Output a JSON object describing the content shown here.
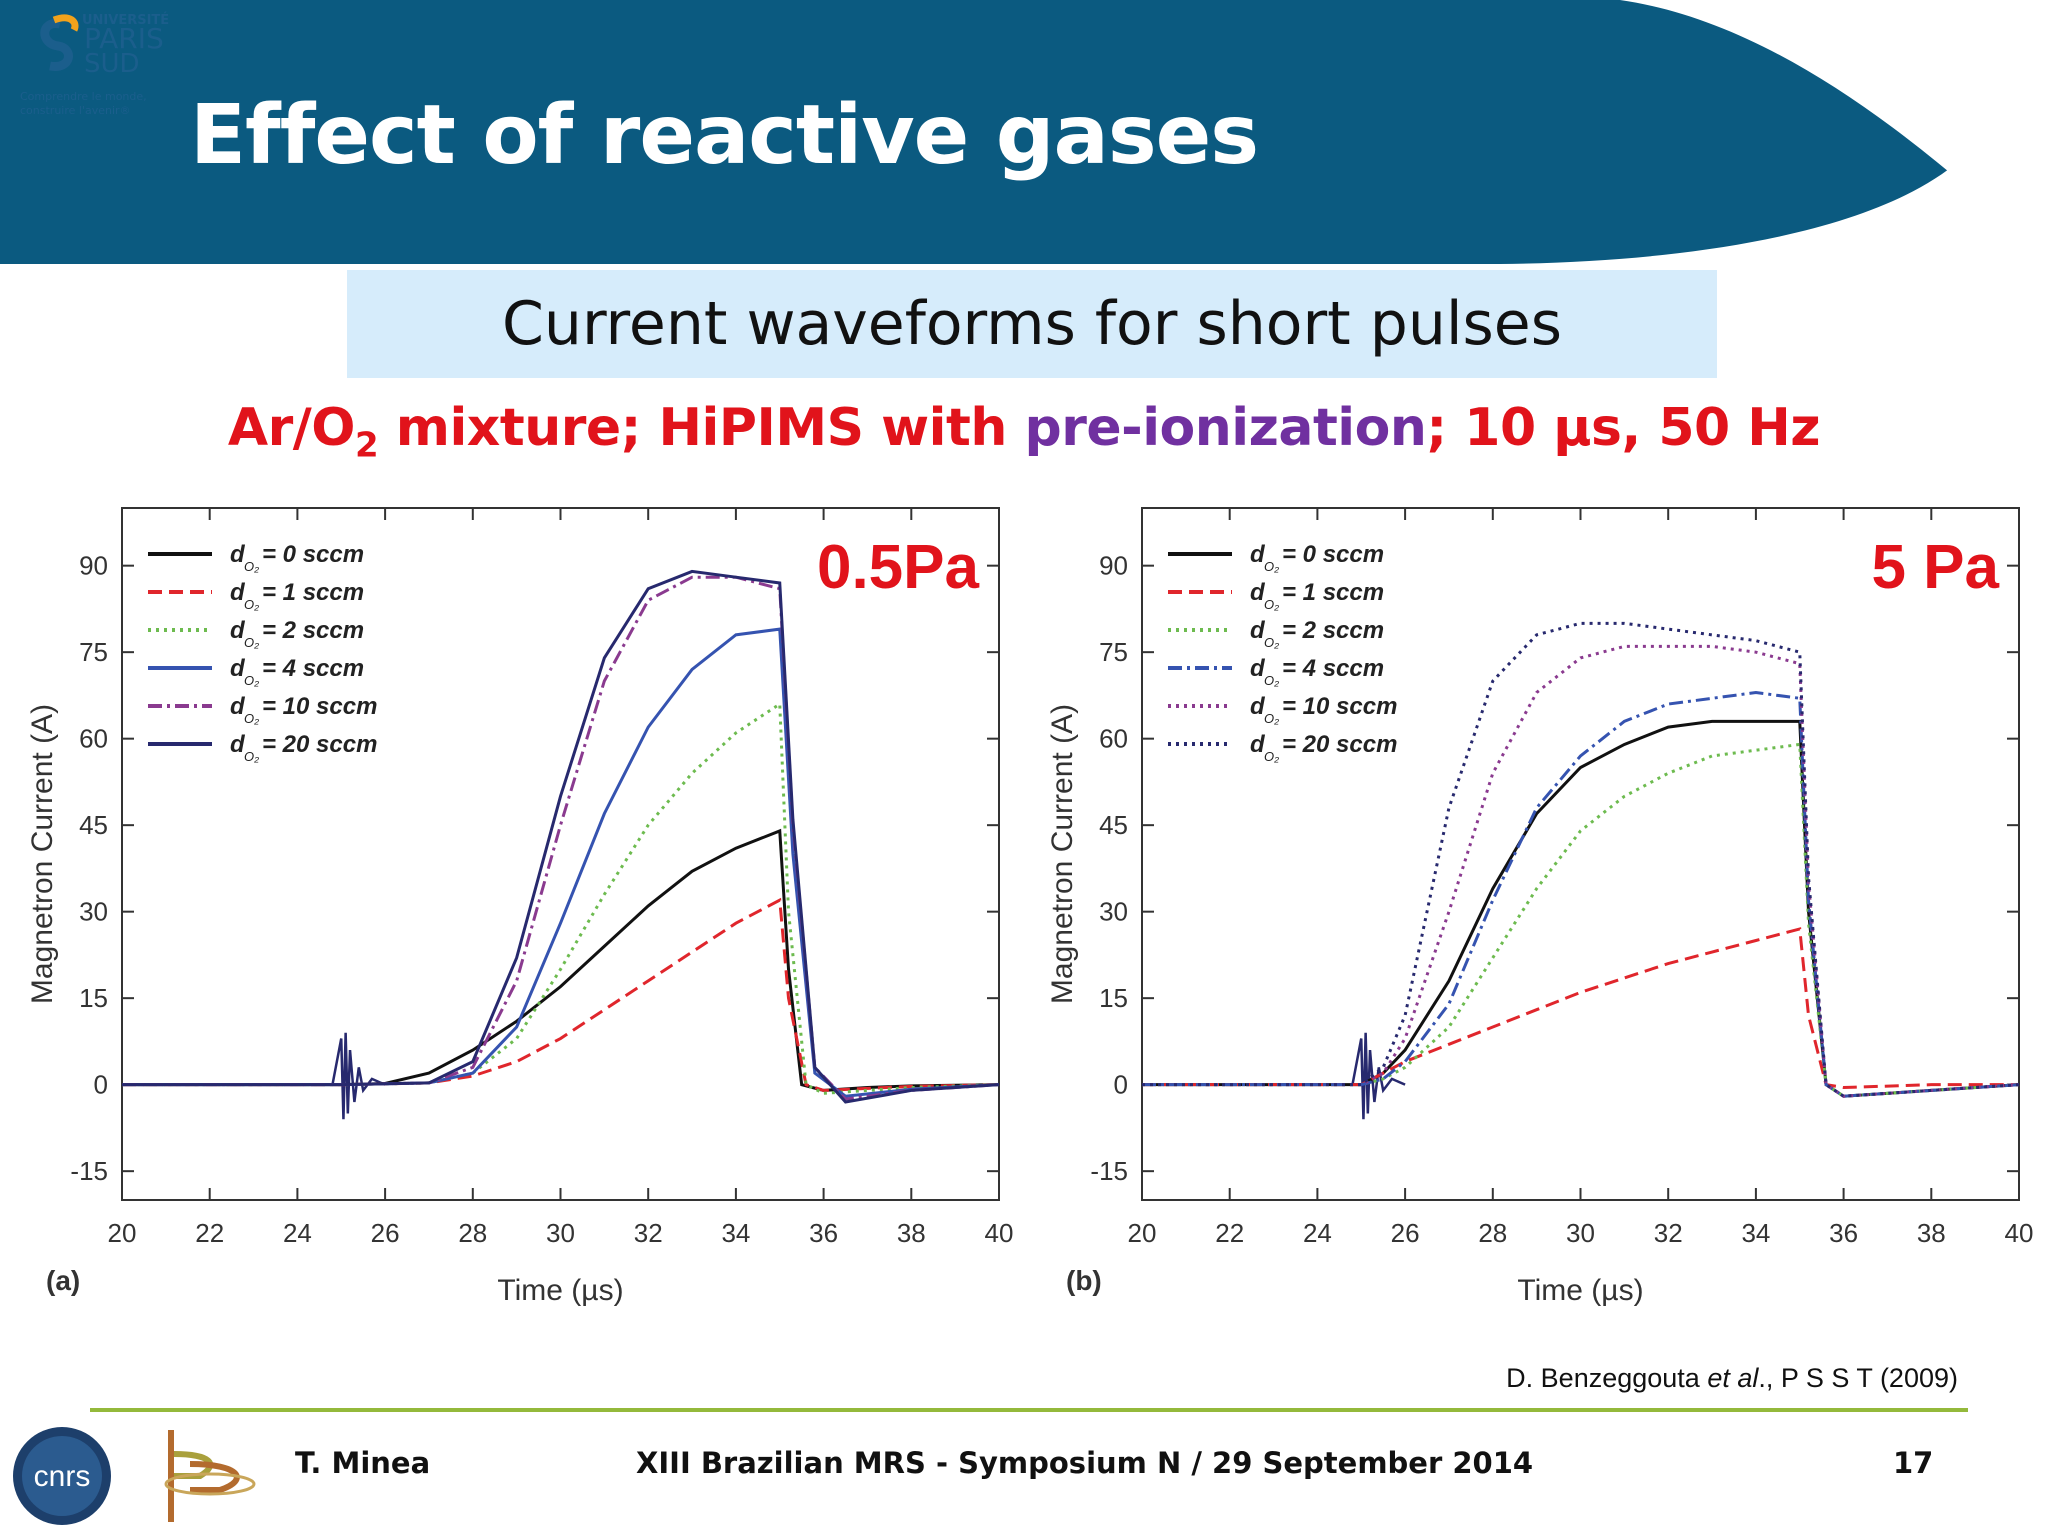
{
  "slide": {
    "title": "Effect of reactive gases",
    "subtitle": "Current waveforms for short pulses",
    "conditions": {
      "part1": "Ar/O",
      "sub": "2",
      "part2": " mixture; HiPIMS  with ",
      "highlight": "pre-ionization",
      "part3": "; 10 µs, 50 Hz"
    },
    "citation": {
      "authors": "D. Benzeggouta ",
      "etal": "et al",
      "rest": "., P S S T (2009)"
    },
    "footer": {
      "author": "T. Minea",
      "event": "XIII Brazilian MRS - Symposium N / 29 September 2014",
      "page": "17"
    },
    "logos": {
      "university": [
        "UNIVERSITÉ",
        "PARIS",
        "SUD"
      ],
      "university_tagline": [
        "Comprendre le monde,",
        "construire l'avenir®"
      ],
      "cnrs": "CNRS"
    }
  },
  "colors": {
    "header": "#0b5a80",
    "subtitle_box": "#d6ecfb",
    "red": "#e1131b",
    "purple": "#7030a0",
    "footer_line": "#94b93b"
  },
  "chart_data": [
    {
      "type": "line",
      "panel": "(a)",
      "annotation": "0.5Pa",
      "xlabel": "Time (µs)",
      "ylabel": "Magnetron Current (A)",
      "xlim": [
        20,
        40
      ],
      "ylim": [
        -20,
        100
      ],
      "xticks": [
        20,
        22,
        24,
        26,
        28,
        30,
        32,
        34,
        36,
        38,
        40
      ],
      "yticks": [
        -15,
        0,
        15,
        30,
        45,
        60,
        75,
        90
      ],
      "legend_position": "top-left",
      "series": [
        {
          "name": "d_O2 = 0 sccm",
          "label": "= 0 sccm",
          "color": "#111111",
          "dash": "solid",
          "x": [
            20,
            25,
            26,
            27,
            28,
            29,
            30,
            31,
            32,
            33,
            34,
            35,
            35.2,
            35.5,
            36,
            37,
            38,
            40
          ],
          "y": [
            0,
            0,
            0.2,
            2,
            6,
            11,
            17,
            24,
            31,
            37,
            41,
            44,
            20,
            0,
            -1,
            -0.5,
            -0.2,
            0
          ]
        },
        {
          "name": "d_O2 = 1 sccm",
          "label": "= 1 sccm",
          "color": "#e0262c",
          "dash": "dashed",
          "x": [
            20,
            25,
            27,
            28,
            29,
            30,
            31,
            32,
            33,
            34,
            35,
            35.2,
            35.6,
            36,
            38,
            40
          ],
          "y": [
            0,
            0,
            0.3,
            1.5,
            4,
            8,
            13,
            18,
            23,
            28,
            32,
            15,
            0,
            -1,
            -0.3,
            0
          ]
        },
        {
          "name": "d_O2 = 2 sccm",
          "label": "= 2 sccm",
          "color": "#6dbb4f",
          "dash": "dotted",
          "x": [
            20,
            25,
            27,
            28,
            29,
            30,
            31,
            32,
            33,
            34,
            35,
            35.2,
            35.6,
            36,
            38,
            40
          ],
          "y": [
            0,
            0,
            0.3,
            2,
            8,
            20,
            33,
            45,
            54,
            61,
            66,
            30,
            0,
            -1.5,
            -0.5,
            0
          ]
        },
        {
          "name": "d_O2 = 4 sccm",
          "label": "= 4 sccm",
          "color": "#3553b0",
          "dash": "solid",
          "x": [
            20,
            25,
            27,
            28,
            29,
            30,
            31,
            32,
            33,
            34,
            35,
            35.3,
            35.8,
            36.5,
            38,
            40
          ],
          "y": [
            0,
            0,
            0.3,
            2,
            10,
            28,
            47,
            62,
            72,
            78,
            79,
            40,
            2,
            -2,
            -0.8,
            0
          ]
        },
        {
          "name": "d_O2 = 10 sccm",
          "label": "= 10 sccm",
          "color": "#8a3a8f",
          "dash": "dashdot",
          "x": [
            20,
            25,
            27,
            28,
            29,
            30,
            31,
            32,
            33,
            34,
            35,
            35.3,
            35.8,
            36.5,
            38,
            40
          ],
          "y": [
            0,
            0,
            0.3,
            3,
            18,
            45,
            70,
            84,
            88,
            88,
            86,
            45,
            3,
            -2.5,
            -1,
            0
          ]
        },
        {
          "name": "d_O2 = 20 sccm",
          "label": "= 20 sccm",
          "color": "#27296e",
          "dash": "solid",
          "x": [
            20,
            25,
            27,
            28,
            29,
            30,
            31,
            32,
            33,
            34,
            35,
            35.3,
            35.8,
            36.5,
            38,
            40
          ],
          "y": [
            0,
            0,
            0.3,
            4,
            22,
            50,
            74,
            86,
            89,
            88,
            87,
            46,
            3,
            -3,
            -1,
            0
          ]
        }
      ]
    },
    {
      "type": "line",
      "panel": "(b)",
      "annotation": "5 Pa",
      "xlabel": "Time (µs)",
      "ylabel": "Magnetron Current (A)",
      "xlim": [
        20,
        40
      ],
      "ylim": [
        -20,
        100
      ],
      "xticks": [
        20,
        22,
        24,
        26,
        28,
        30,
        32,
        34,
        36,
        38,
        40
      ],
      "yticks": [
        -15,
        0,
        15,
        30,
        45,
        60,
        75,
        90
      ],
      "legend_position": "top-left",
      "series": [
        {
          "name": "d_O2 = 0 sccm",
          "label": "= 0 sccm",
          "color": "#111111",
          "dash": "solid",
          "x": [
            20,
            25,
            25.5,
            26,
            27,
            28,
            29,
            30,
            31,
            32,
            33,
            34,
            35,
            35.2,
            35.6,
            36,
            38,
            40
          ],
          "y": [
            0,
            0,
            2,
            6,
            18,
            34,
            47,
            55,
            59,
            62,
            63,
            63,
            63,
            30,
            0,
            -2,
            -1,
            0
          ]
        },
        {
          "name": "d_O2 = 1 sccm",
          "label": "= 1 sccm",
          "color": "#e0262c",
          "dash": "dashed",
          "x": [
            20,
            25,
            25.5,
            26,
            27,
            28,
            29,
            30,
            31,
            32,
            33,
            34,
            35,
            35.2,
            35.6,
            36,
            38,
            40
          ],
          "y": [
            0,
            0,
            2,
            4,
            7,
            10,
            13,
            16,
            18.5,
            21,
            23,
            25,
            27,
            12,
            0,
            -0.5,
            0,
            0
          ]
        },
        {
          "name": "d_O2 = 2 sccm",
          "label": "= 2 sccm",
          "color": "#6dbb4f",
          "dash": "dotted",
          "x": [
            20,
            25,
            25.5,
            26,
            27,
            28,
            29,
            30,
            31,
            32,
            33,
            34,
            35,
            35.2,
            35.6,
            36,
            38,
            40
          ],
          "y": [
            0,
            0,
            1,
            3,
            10,
            22,
            34,
            44,
            50,
            54,
            57,
            58,
            59,
            28,
            0,
            -2,
            -1,
            0
          ]
        },
        {
          "name": "d_O2 = 4 sccm",
          "label": "= 4 sccm",
          "color": "#3553b0",
          "dash": "dashdot",
          "x": [
            20,
            25,
            25.5,
            26,
            27,
            28,
            29,
            30,
            31,
            32,
            33,
            34,
            35,
            35.2,
            35.6,
            36,
            38,
            40
          ],
          "y": [
            0,
            0,
            1,
            4,
            14,
            32,
            48,
            57,
            63,
            66,
            67,
            68,
            67,
            32,
            0,
            -2,
            -1,
            0
          ]
        },
        {
          "name": "d_O2 = 10 sccm",
          "label": "= 10 sccm",
          "color": "#8a3a8f",
          "dash": "dotted",
          "x": [
            20,
            25,
            25.5,
            26,
            27,
            28,
            29,
            30,
            31,
            32,
            33,
            34,
            35,
            35.2,
            35.6,
            36,
            38,
            40
          ],
          "y": [
            0,
            0,
            2,
            8,
            30,
            54,
            68,
            74,
            76,
            76,
            76,
            75,
            73,
            35,
            0,
            -2,
            -1,
            0
          ]
        },
        {
          "name": "d_O2 = 20 sccm",
          "label": "= 20 sccm",
          "color": "#27296e",
          "dash": "dotted",
          "x": [
            20,
            25,
            25.5,
            26,
            27,
            28,
            29,
            30,
            31,
            32,
            33,
            34,
            35,
            35.2,
            35.6,
            36,
            38,
            40
          ],
          "y": [
            0,
            0,
            3,
            12,
            48,
            70,
            78,
            80,
            80,
            79,
            78,
            77,
            75,
            36,
            0,
            -2,
            -1,
            0
          ]
        }
      ]
    }
  ]
}
